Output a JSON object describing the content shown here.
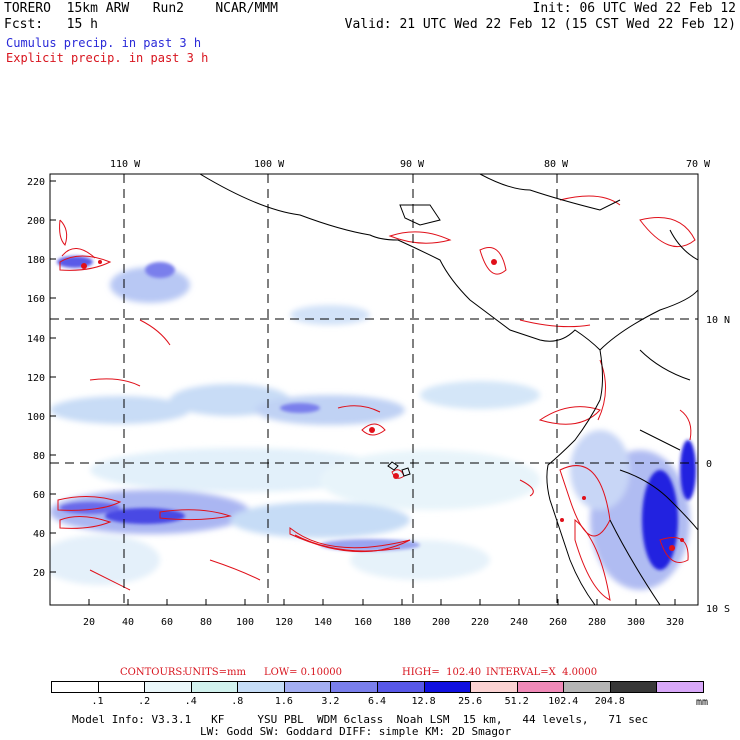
{
  "header": {
    "line1_left": "TORERO  15km ARW   Run2    NCAR/MMM",
    "line1_right": "Init: 06 UTC Wed 22 Feb 12",
    "line2_left": "Fcst:   15 h",
    "line2_right": "Valid: 21 UTC Wed 22 Feb 12 (15 CST Wed 22 Feb 12)",
    "cumulus_label": "Cumulus precip. in past 3 h",
    "explicit_label": "Explicit precip. in past 3 h"
  },
  "map": {
    "lon_labels": [
      "110 W",
      "100 W",
      "90 W",
      "80 W",
      "70 W"
    ],
    "lat_labels": [
      "10 N",
      "0",
      "10 S"
    ],
    "y_ticks": [
      "220",
      "200",
      "180",
      "160",
      "140",
      "120",
      "100",
      "80",
      "60",
      "40",
      "20"
    ],
    "x_ticks": [
      "20",
      "40",
      "60",
      "80",
      "100",
      "120",
      "140",
      "160",
      "180",
      "200",
      "220",
      "240",
      "260",
      "280",
      "300",
      "320"
    ],
    "colors": {
      "cumulus": "#2a2ad8",
      "explicit": "#e0101a",
      "grid": "#000000"
    }
  },
  "contours_line": {
    "contours": "CONTOURS:",
    "units": "UNITS=mm",
    "low": "LOW= 0.10000",
    "high": "HIGH=  102.40",
    "interval": "INTERVAL=X  4.0000"
  },
  "colorbar": {
    "labels": [
      ".1",
      ".2",
      ".4",
      ".8",
      "1.6",
      "3.2",
      "6.4",
      "12.8",
      "25.6",
      "51.2",
      "102.4",
      "204.8"
    ],
    "unit": "mm",
    "colors": [
      "#ffffff",
      "#ffffff",
      "#eaf7fa",
      "#d2f2ee",
      "#c6ddf7",
      "#a3aef2",
      "#7a7fec",
      "#5858e8",
      "#1010e0",
      "#fbd3d3",
      "#f08ab8",
      "#b5b5b5",
      "#383838",
      "#d8a8f8"
    ]
  },
  "model_info": {
    "line1": "Model Info: V3.3.1   KF     YSU PBL  WDM 6class  Noah LSM  15 km,   44 levels,   71 sec",
    "line2": "LW: Godd SW: Goddard DIFF: simple KM: 2D Smagor"
  }
}
